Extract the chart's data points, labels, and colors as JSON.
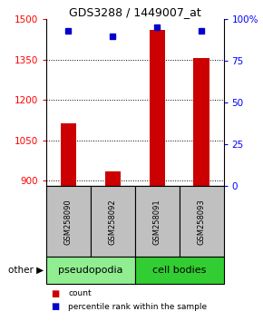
{
  "title": "GDS3288 / 1449007_at",
  "samples": [
    "GSM258090",
    "GSM258092",
    "GSM258091",
    "GSM258093"
  ],
  "groups": [
    "pseudopodia",
    "pseudopodia",
    "cell bodies",
    "cell bodies"
  ],
  "pseudopodia_color": "#90EE90",
  "cell_bodies_color": "#32CD32",
  "bar_values": [
    1112,
    935,
    1460,
    1355
  ],
  "percentile_values": [
    93,
    90,
    95,
    93
  ],
  "ylim_left": [
    880,
    1500
  ],
  "ylim_right": [
    0,
    100
  ],
  "yticks_left": [
    900,
    1050,
    1200,
    1350,
    1500
  ],
  "yticks_right": [
    0,
    25,
    50,
    75,
    100
  ],
  "bar_color": "#CC0000",
  "dot_color": "#0000CC",
  "sample_box_color": "#C0C0C0",
  "other_label": "other",
  "legend_count_label": "count",
  "legend_percentile_label": "percentile rank within the sample",
  "title_fontsize": 9,
  "tick_fontsize": 7.5,
  "sample_fontsize": 6,
  "group_fontsize": 8
}
